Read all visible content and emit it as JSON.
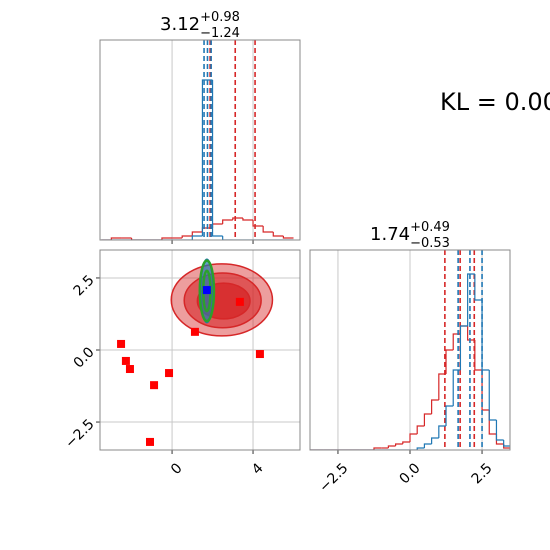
{
  "chart_data": [
    {
      "type": "histogram",
      "title": {
        "value": "3.12",
        "upper": "+0.98",
        "lower": "−1.24"
      },
      "bins": [
        -3.5,
        -3.0,
        -2.5,
        -2.0,
        -1.5,
        -1.0,
        -0.5,
        0.0,
        0.5,
        1.0,
        1.5,
        2.0,
        2.5,
        3.0,
        3.5,
        4.0,
        4.5,
        5.0,
        5.5,
        6.0
      ],
      "series": [
        {
          "color": "#d62728",
          "values": [
            0,
            0.01,
            0.01,
            0,
            0,
            0,
            0.01,
            0.01,
            0.02,
            0.04,
            0.06,
            0.08,
            0.1,
            0.11,
            0.1,
            0.07,
            0.04,
            0.02,
            0.01
          ],
          "quantiles": [
            1.88,
            3.12,
            4.1
          ]
        },
        {
          "color": "#1f77b4",
          "values": [
            0,
            0,
            0,
            0,
            0,
            0,
            0,
            0,
            0,
            0.02,
            0.8,
            0.02,
            0,
            0,
            0,
            0,
            0,
            0,
            0
          ],
          "quantiles": [
            1.58,
            1.75,
            1.93
          ]
        }
      ],
      "xlim": [
        -3.56,
        6.32
      ],
      "ylim": [
        0,
        1
      ],
      "xticks": [
        0,
        4
      ],
      "show_tick_labels": false,
      "grid": true
    },
    {
      "type": "scatter",
      "series": [
        {
          "color": "#ff0000",
          "x": [
            -2.52,
            -2.28,
            -2.08,
            -0.89,
            -0.15,
            -1.09,
            1.13,
            3.35,
            4.34
          ],
          "y": [
            0.21,
            -0.38,
            -0.66,
            -1.22,
            -0.8,
            -3.19,
            0.63,
            1.67,
            -0.14
          ]
        },
        {
          "color": "#0000ff",
          "x": [
            1.72
          ],
          "y": [
            2.08
          ]
        }
      ],
      "contours": [
        {
          "color": "#d62728",
          "fill": "rgba(214,39,40,0.45)",
          "cx": 2.46,
          "cy": 1.74,
          "rx": 2.5,
          "ry": 1.25
        },
        {
          "color": "#d62728",
          "fill": "rgba(214,39,40,0.6)",
          "cx": 2.5,
          "cy": 1.72,
          "rx": 1.9,
          "ry": 0.95
        },
        {
          "color": "#d62728",
          "fill": "rgba(214,39,40,0.8)",
          "cx": 2.55,
          "cy": 1.7,
          "rx": 1.3,
          "ry": 0.62
        },
        {
          "color": "#1f77b4",
          "fill": "rgba(31,119,180,0.7)",
          "cx": 1.72,
          "cy": 2.05,
          "rx": 0.3,
          "ry": 1.1
        },
        {
          "color": "#2ca02c",
          "fill": "none",
          "cx": 1.72,
          "cy": 2.05,
          "rx": 0.35,
          "ry": 1.05
        },
        {
          "color": "#2ca02c",
          "fill": "none",
          "cx": 1.72,
          "cy": 2.05,
          "rx": 0.18,
          "ry": 0.7
        }
      ],
      "xlim": [
        -3.56,
        6.32
      ],
      "ylim": [
        -3.47,
        3.47
      ],
      "xticks": [
        0,
        4
      ],
      "yticks": [
        {
          "value": -2.5,
          "label": "−2.5"
        },
        {
          "value": 0,
          "label": "0.0"
        },
        2.5
      ],
      "show_tick_labels": true,
      "grid": true
    },
    {
      "type": "histogram",
      "title": {
        "value": "1.74",
        "upper": "+0.49",
        "lower": "−0.53"
      },
      "bins": [
        -3.5,
        -3.25,
        -3.0,
        -2.75,
        -2.5,
        -2.25,
        -2.0,
        -1.75,
        -1.5,
        -1.25,
        -1.0,
        -0.75,
        -0.5,
        -0.25,
        0.0,
        0.25,
        0.5,
        0.75,
        1.0,
        1.25,
        1.5,
        1.75,
        2.0,
        2.25,
        2.5,
        2.75,
        3.0,
        3.25,
        3.5
      ],
      "series": [
        {
          "color": "#d62728",
          "values": [
            0,
            0,
            0,
            0,
            0,
            0,
            0,
            0,
            0,
            0.01,
            0.01,
            0.02,
            0.03,
            0.04,
            0.08,
            0.12,
            0.18,
            0.25,
            0.38,
            0.5,
            0.58,
            0.62,
            0.55,
            0.4,
            0.2,
            0.08,
            0.03,
            0.01
          ],
          "quantiles": [
            1.21,
            1.74,
            2.23
          ]
        },
        {
          "color": "#1f77b4",
          "values": [
            0,
            0,
            0,
            0,
            0,
            0,
            0,
            0,
            0,
            0,
            0,
            0,
            0,
            0,
            0,
            0.01,
            0.03,
            0.06,
            0.12,
            0.22,
            0.4,
            0.62,
            0.88,
            0.75,
            0.4,
            0.15,
            0.05,
            0.02
          ],
          "quantiles": [
            1.67,
            2.08,
            2.5
          ]
        }
      ],
      "xlim": [
        -3.47,
        3.47
      ],
      "ylim": [
        0,
        1
      ],
      "xticks": [
        {
          "value": -2.5,
          "label": "−2.5"
        },
        {
          "value": 0,
          "label": "0.0"
        },
        2.5
      ],
      "show_tick_labels": true,
      "grid": true
    }
  ],
  "annotation": "KL = 0.00"
}
